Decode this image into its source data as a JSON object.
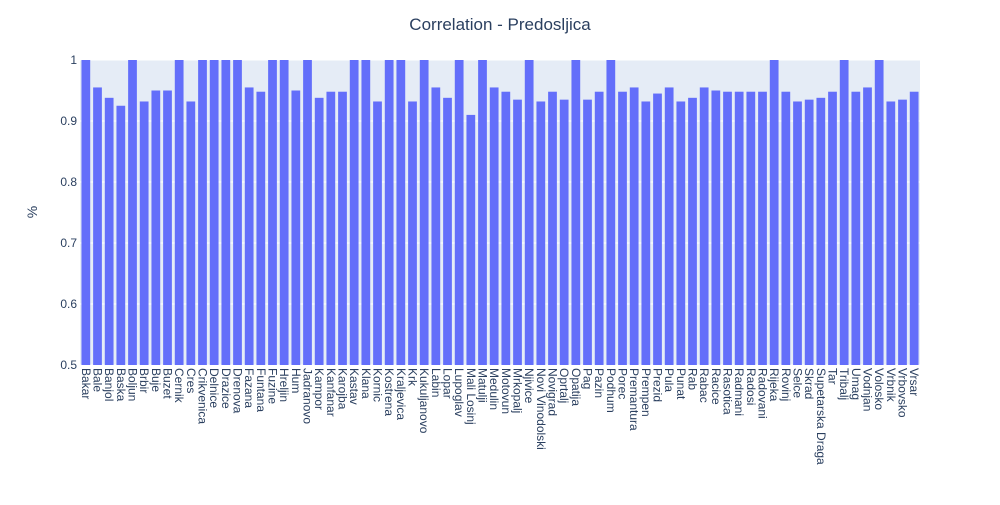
{
  "chart_data": {
    "type": "bar",
    "title": "Correlation - Predosljica",
    "xlabel": "",
    "ylabel": "%",
    "ylim": [
      0.5,
      1.0
    ],
    "yticks": [
      "0.5",
      "0.6",
      "0.7",
      "0.8",
      "0.9",
      "1"
    ],
    "grid": true,
    "legend": "none",
    "colors": {
      "bar": "#636efa",
      "plot_bg": "#e5ecf6",
      "grid": "#ffffff",
      "text": "#2a3f5f"
    },
    "categories": [
      "Bakar",
      "Bale",
      "Banjol",
      "Baska",
      "Boljun",
      "Brbir",
      "Buje",
      "Buzet",
      "Cernik",
      "Cres",
      "Crikvenica",
      "Delnice",
      "Drazice",
      "Drenova",
      "Fazana",
      "Funtana",
      "Fuzine",
      "Hreljin",
      "Hum",
      "Jadranovo",
      "Kampor",
      "Kanfanar",
      "Karojba",
      "Kastav",
      "Klana",
      "Kornic",
      "Kostrena",
      "Kraljevica",
      "Krk",
      "Kukuljanovo",
      "Labin",
      "Lopar",
      "Lupoglav",
      "Mali Losinj",
      "Matulji",
      "Medulin",
      "Motovun",
      "Mrkopalj",
      "Njivice",
      "Novi Vinodolski",
      "Novigrad",
      "Oprtalj",
      "Opatija",
      "Pag",
      "Pazin",
      "Podhum",
      "Porec",
      "Premantura",
      "Prempen",
      "Prezid",
      "Pula",
      "Punat",
      "Rab",
      "Rabac",
      "Racice",
      "Rasotica",
      "Radmani",
      "Radosi",
      "Radovani",
      "Rijeka",
      "Rovinj",
      "Selce",
      "Skrad",
      "Supetarska Draga",
      "Tar",
      "Tribalj",
      "Umag",
      "Vodnjan",
      "Volosko",
      "Vrbnik",
      "Vrbovsko",
      "Vrsar"
    ],
    "values": [
      1.0,
      0.955,
      0.938,
      0.925,
      1.0,
      0.932,
      0.95,
      0.95,
      1.0,
      0.932,
      1.0,
      1.0,
      1.0,
      1.0,
      0.955,
      0.948,
      1.0,
      1.0,
      0.95,
      1.0,
      0.938,
      0.948,
      0.948,
      1.0,
      1.0,
      0.932,
      1.0,
      1.0,
      0.932,
      1.0,
      0.955,
      0.938,
      1.0,
      0.91,
      1.0,
      0.955,
      0.948,
      0.935,
      1.0,
      0.932,
      0.948,
      0.935,
      1.0,
      0.935,
      0.948,
      1.0,
      0.948,
      0.955,
      0.932,
      0.945,
      0.955,
      0.932,
      0.938,
      0.955,
      0.95,
      0.948,
      0.948,
      0.948,
      0.948,
      1.0,
      0.948,
      0.932,
      0.935,
      0.938,
      0.948,
      1.0,
      0.948,
      0.955,
      1.0,
      0.932,
      0.935,
      0.948
    ]
  }
}
